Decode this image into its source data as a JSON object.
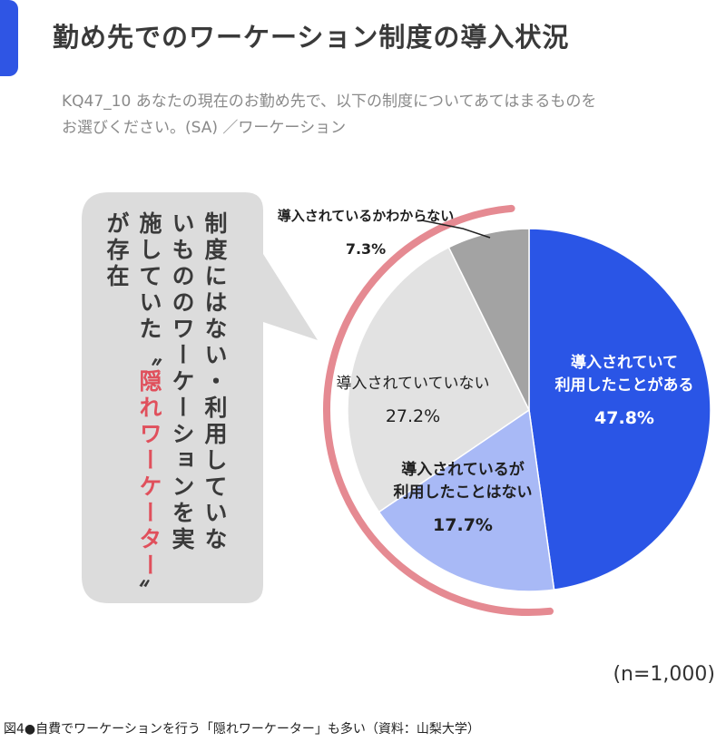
{
  "header": {
    "title": "勤め先でのワーケーション制度の導入状況"
  },
  "question": {
    "line1": "KQ47_10  あなたの現在のお勤め先で、以下の制度についてあてはまるものを",
    "line2": "お選びください。(SA)  ／ワーケーション"
  },
  "callout": {
    "col1": "制度にはない・利用していな",
    "col2_pre": "いもののワーケーションを実",
    "col3_pre": "施していた",
    "quote_open": "〝",
    "hidden_term": "隠れワーケーター",
    "quote_close": "〟",
    "col4": "が存在"
  },
  "sample": {
    "n_label": "(n=1,000)"
  },
  "footer": {
    "caption": "図4●自費でワーケーションを行う「隠れワーケーター」も多い（資料：山梨大学）"
  },
  "colors": {
    "accent": "#2f55e4",
    "highlight": "#e0505c",
    "bubble": "#dcdcdc"
  },
  "chart_data": {
    "type": "pie",
    "unit": "%",
    "slices": [
      {
        "label": "導入されていて\n利用したことがある",
        "value": 47.8,
        "value_label": "47.8%",
        "color": "#2a55e6",
        "text_color": "#ffffff"
      },
      {
        "label": "導入されているが\n利用したことはない",
        "value": 17.7,
        "value_label": "17.7%",
        "color": "#a8b9f6",
        "text_color": "#1f1f1f"
      },
      {
        "label": "導入されていていない",
        "value": 27.2,
        "value_label": "27.2%",
        "color": "#e2e2e2",
        "text_color": "#1f1f1f"
      },
      {
        "label": "導入されているかわからない",
        "value": 7.3,
        "value_label": "7.3%",
        "color": "#a3a3a3",
        "text_color": "#1f1f1f"
      }
    ]
  }
}
